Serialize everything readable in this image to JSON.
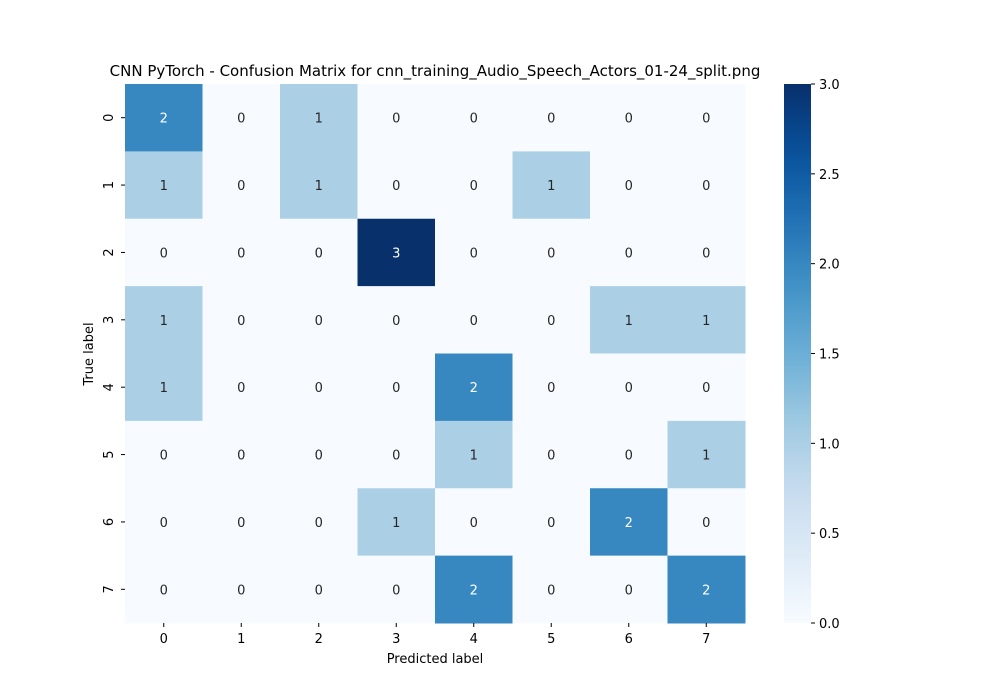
{
  "chart_data": {
    "type": "heatmap",
    "title": "CNN PyTorch - Confusion Matrix for cnn_training_Audio_Speech_Actors_01-24_split.png",
    "xlabel": "Predicted label",
    "ylabel": "True label",
    "x_categories": [
      "0",
      "1",
      "2",
      "3",
      "4",
      "5",
      "6",
      "7"
    ],
    "y_categories": [
      "0",
      "1",
      "2",
      "3",
      "4",
      "5",
      "6",
      "7"
    ],
    "matrix": [
      [
        2,
        0,
        1,
        0,
        0,
        0,
        0,
        0
      ],
      [
        1,
        0,
        1,
        0,
        0,
        1,
        0,
        0
      ],
      [
        0,
        0,
        0,
        3,
        0,
        0,
        0,
        0
      ],
      [
        1,
        0,
        0,
        0,
        0,
        0,
        1,
        1
      ],
      [
        1,
        0,
        0,
        0,
        2,
        0,
        0,
        0
      ],
      [
        0,
        0,
        0,
        0,
        1,
        0,
        0,
        1
      ],
      [
        0,
        0,
        0,
        1,
        0,
        0,
        2,
        0
      ],
      [
        0,
        0,
        0,
        0,
        2,
        0,
        0,
        2
      ]
    ],
    "vmin": 0,
    "vmax": 3,
    "colormap": "Blues",
    "colorbar_ticks": [
      "0.0",
      "0.5",
      "1.0",
      "1.5",
      "2.0",
      "2.5",
      "3.0"
    ],
    "colorbar_tick_values": [
      0,
      0.5,
      1.0,
      1.5,
      2.0,
      2.5,
      3.0
    ],
    "annotated": true
  }
}
